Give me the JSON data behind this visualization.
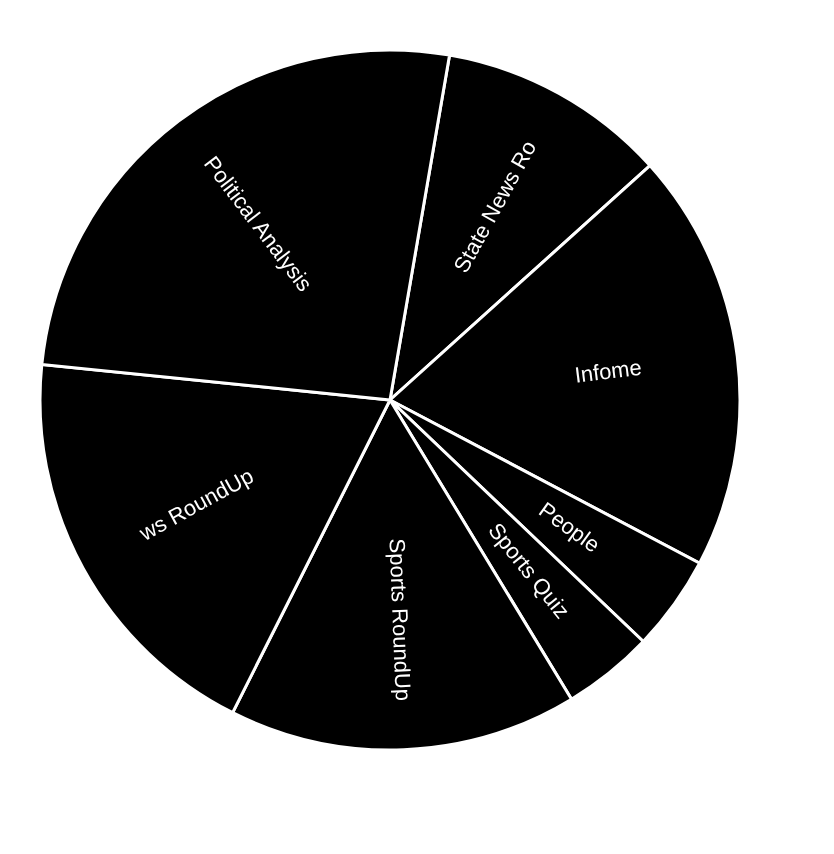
{
  "chart_data": {
    "type": "pie",
    "categories": [
      "State News Ro",
      "Infome",
      "People",
      "Sports Quiz",
      "Sports RoundUp",
      "ws RoundUp",
      "Political Analysis"
    ],
    "values": [
      10.6,
      19.4,
      4.4,
      4.2,
      16.1,
      19.2,
      26.1
    ],
    "colors": [
      "#000000",
      "#000000",
      "#000000",
      "#000000",
      "#000000",
      "#000000",
      "#000000"
    ]
  }
}
